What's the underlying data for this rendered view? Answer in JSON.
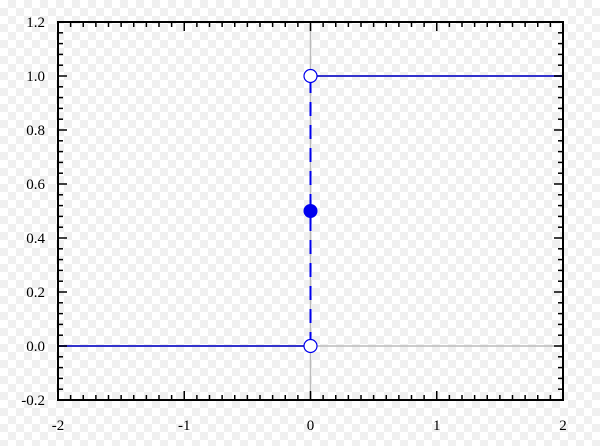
{
  "chart_data": {
    "type": "line",
    "title": "",
    "xlabel": "",
    "ylabel": "",
    "xlim": [
      -2,
      2
    ],
    "ylim": [
      -0.2,
      1.2
    ],
    "grid": false,
    "x_ticks": [
      -2,
      -1,
      0,
      1,
      2
    ],
    "x_tick_labels": [
      "-2",
      "-1",
      "0",
      "1",
      "2"
    ],
    "y_ticks": [
      -0.2,
      0.0,
      0.2,
      0.4,
      0.6,
      0.8,
      1.0,
      1.2
    ],
    "y_tick_labels": [
      "-0.2",
      "0.0",
      "0.2",
      "0.4",
      "0.6",
      "0.8",
      "1.0",
      "1.2"
    ],
    "series": [
      {
        "style": "solid",
        "color": "#3333cc",
        "segments": [
          {
            "x": [
              -2,
              0
            ],
            "y": [
              0,
              0
            ]
          },
          {
            "x": [
              0,
              2
            ],
            "y": [
              1,
              1
            ]
          }
        ]
      },
      {
        "style": "dashed",
        "color": "#0000ee",
        "segments": [
          {
            "x": [
              0,
              0
            ],
            "y": [
              0,
              1
            ]
          }
        ]
      }
    ],
    "points": [
      {
        "x": 0,
        "y": 0,
        "marker": "open-circle"
      },
      {
        "x": 0,
        "y": 1,
        "marker": "open-circle"
      },
      {
        "x": 0,
        "y": 0.5,
        "marker": "filled-circle"
      }
    ],
    "axes_reference_lines": {
      "x_axis_at_y": 0,
      "y_axis_at_x": 0,
      "color": "#bbbbbb"
    },
    "colors": {
      "curve": "#3333cc",
      "marker": "#0000ee",
      "frame": "#000000"
    }
  }
}
